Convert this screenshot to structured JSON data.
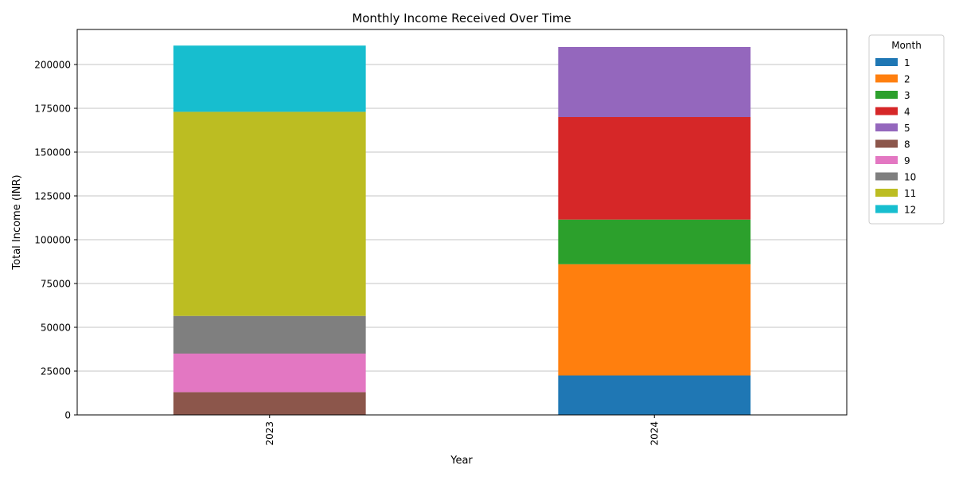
{
  "chart_data": {
    "type": "bar",
    "stacked": true,
    "title": "Monthly Income Received Over Time",
    "xlabel": "Year",
    "ylabel": "Total Income (INR)",
    "categories": [
      "2023",
      "2024"
    ],
    "ylim": [
      0,
      220000
    ],
    "yticks": [
      0,
      25000,
      50000,
      75000,
      100000,
      125000,
      150000,
      175000,
      200000
    ],
    "grid": "y",
    "legend": {
      "title": "Month",
      "placement": "outside-top-right"
    },
    "series": [
      {
        "name": "1",
        "color": "#1f77b4",
        "values": [
          0,
          22500
        ]
      },
      {
        "name": "2",
        "color": "#ff7f0e",
        "values": [
          0,
          63500
        ]
      },
      {
        "name": "3",
        "color": "#2ca02c",
        "values": [
          0,
          25500
        ]
      },
      {
        "name": "4",
        "color": "#d62728",
        "values": [
          0,
          58500
        ]
      },
      {
        "name": "5",
        "color": "#9467bd",
        "values": [
          0,
          40000
        ]
      },
      {
        "name": "8",
        "color": "#8c564b",
        "values": [
          13000,
          0
        ]
      },
      {
        "name": "9",
        "color": "#e377c2",
        "values": [
          22000,
          0
        ]
      },
      {
        "name": "10",
        "color": "#7f7f7f",
        "values": [
          21500,
          0
        ]
      },
      {
        "name": "11",
        "color": "#bcbd22",
        "values": [
          116500,
          0
        ]
      },
      {
        "name": "12",
        "color": "#17becf",
        "values": [
          37800,
          0
        ]
      }
    ]
  }
}
